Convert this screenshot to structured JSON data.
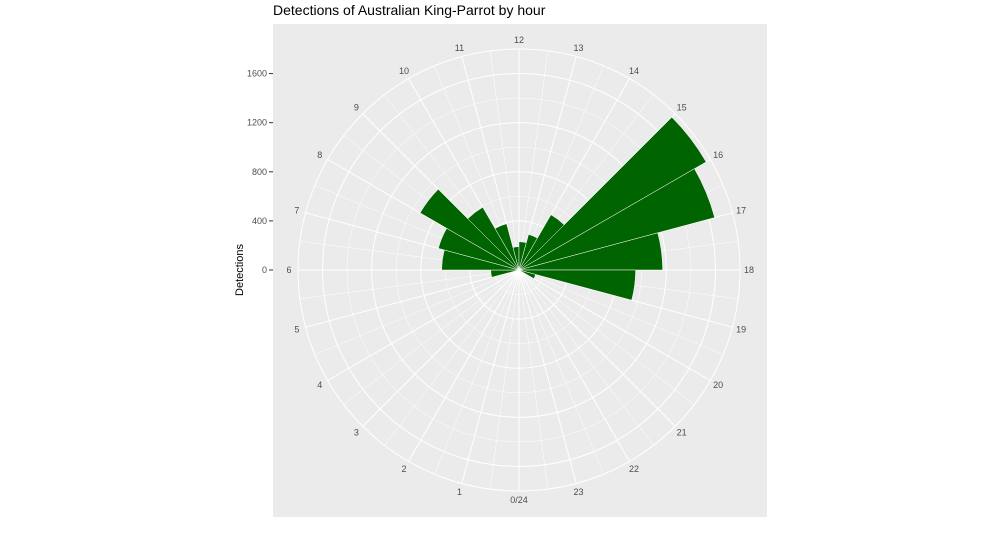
{
  "chart_data": {
    "type": "bar",
    "coord": "polar",
    "title": "Detections of Australian King-Parrot by hour",
    "xlabel": "",
    "ylabel": "Detections",
    "ylim": [
      0,
      1800
    ],
    "yticks": [
      0,
      400,
      800,
      1200,
      1600
    ],
    "categories": [
      "0/24",
      "1",
      "2",
      "3",
      "4",
      "5",
      "6",
      "7",
      "8",
      "9",
      "10",
      "11",
      "12",
      "13",
      "14",
      "15",
      "16",
      "17",
      "18",
      "19",
      "20",
      "21",
      "22",
      "23"
    ],
    "hour_labels": [
      "0/24",
      "1",
      "2",
      "3",
      "4",
      "5",
      "6",
      "7",
      "8",
      "9",
      "10",
      "11",
      "12",
      "13",
      "14",
      "15",
      "16",
      "17",
      "18",
      "19",
      "20",
      "21",
      "22",
      "23"
    ],
    "bars": [
      {
        "h": 5.5,
        "value": 230
      },
      {
        "h": 6.5,
        "value": 630
      },
      {
        "h": 7.5,
        "value": 680
      },
      {
        "h": 8.5,
        "value": 930
      },
      {
        "h": 9.5,
        "value": 590
      },
      {
        "h": 10.5,
        "value": 390
      },
      {
        "h": 11.5,
        "value": 190
      },
      {
        "h": 12.5,
        "value": 230
      },
      {
        "h": 13.5,
        "value": 300
      },
      {
        "h": 14.5,
        "value": 520
      },
      {
        "h": 15.5,
        "value": 1760
      },
      {
        "h": 16.5,
        "value": 1650
      },
      {
        "h": 17.5,
        "value": 1170
      },
      {
        "h": 18.5,
        "value": 950
      },
      {
        "h": 19.5,
        "value": 140
      }
    ],
    "colors": {
      "bar": "#006400",
      "panel": "#ebebeb",
      "grid": "#ffffff"
    },
    "grid": true,
    "legend": "none"
  }
}
